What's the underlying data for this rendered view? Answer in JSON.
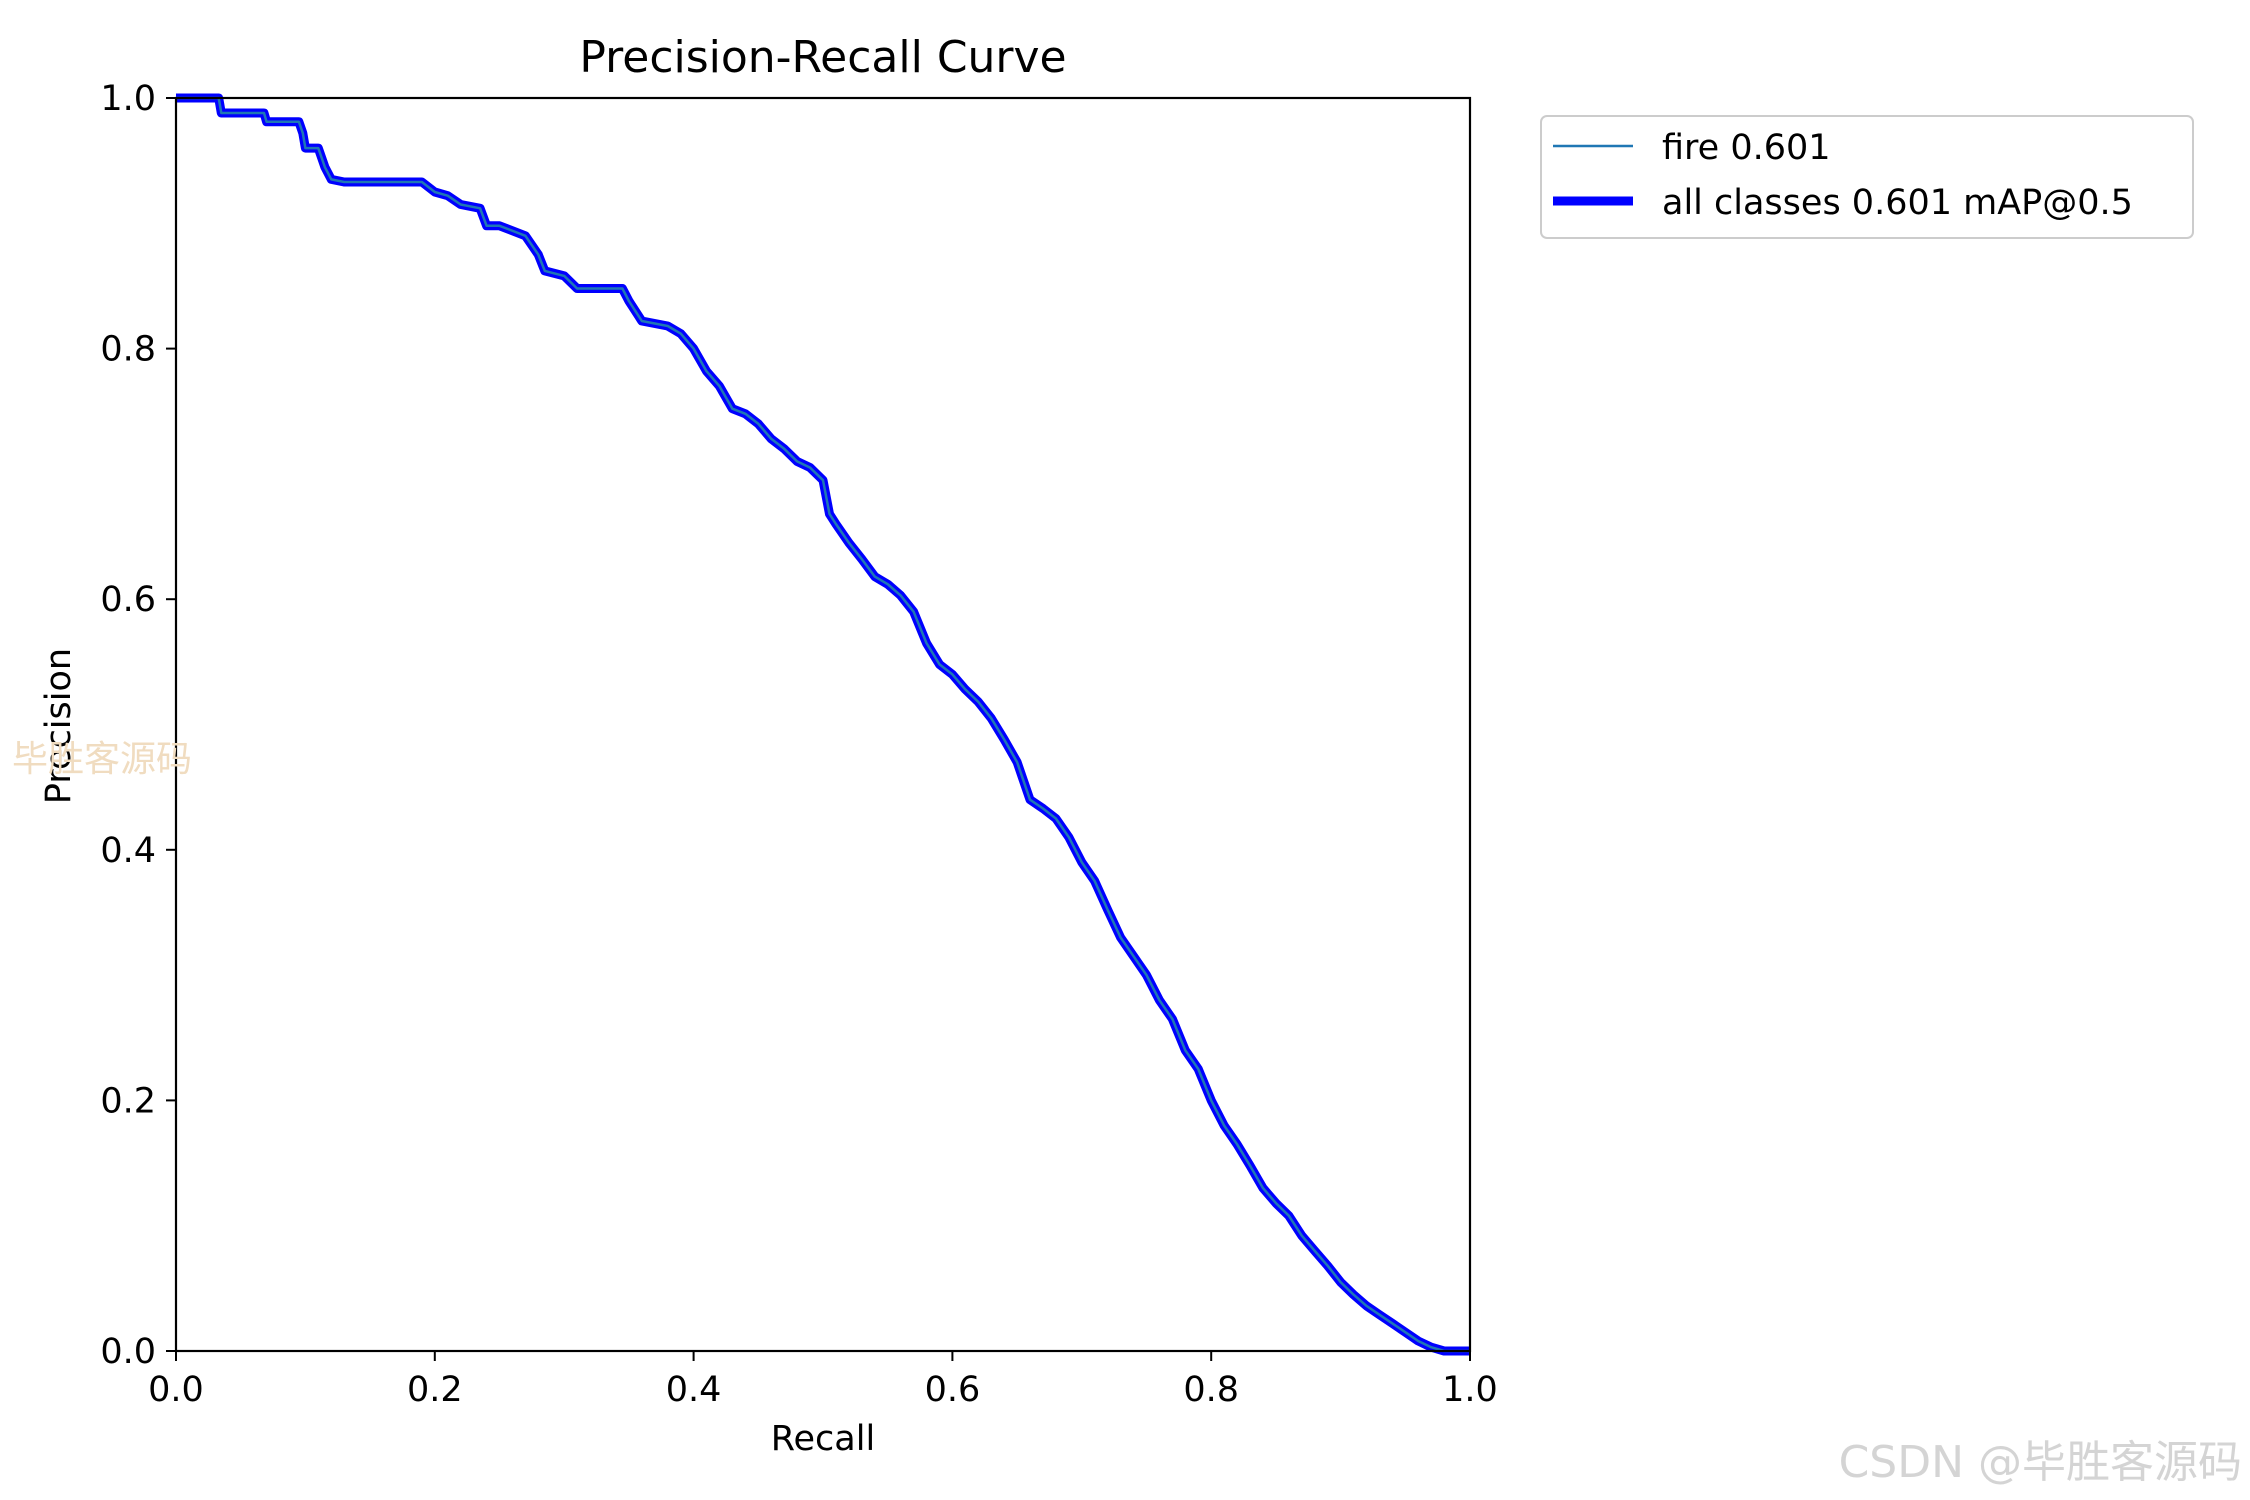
{
  "chart_data": {
    "type": "line",
    "title": "Precision-Recall Curve",
    "xlabel": "Recall",
    "ylabel": "Precision",
    "xlim": [
      0,
      1
    ],
    "ylim": [
      0,
      1
    ],
    "xticks": [
      "0.0",
      "0.2",
      "0.4",
      "0.6",
      "0.8",
      "1.0"
    ],
    "yticks": [
      "0.0",
      "0.2",
      "0.4",
      "0.6",
      "0.8",
      "1.0"
    ],
    "grid": false,
    "legend_position": "outside-top-right",
    "series": [
      {
        "name": "fire 0.601",
        "color": "#1f77b4",
        "x": [
          0.0,
          0.033,
          0.035,
          0.068,
          0.07,
          0.095,
          0.098,
          0.1,
          0.11,
          0.115,
          0.12,
          0.13,
          0.19,
          0.2,
          0.21,
          0.22,
          0.235,
          0.24,
          0.25,
          0.27,
          0.28,
          0.285,
          0.3,
          0.31,
          0.345,
          0.35,
          0.36,
          0.38,
          0.39,
          0.4,
          0.41,
          0.42,
          0.43,
          0.44,
          0.45,
          0.46,
          0.47,
          0.48,
          0.49,
          0.5,
          0.505,
          0.51,
          0.52,
          0.53,
          0.54,
          0.55,
          0.56,
          0.57,
          0.58,
          0.59,
          0.6,
          0.61,
          0.62,
          0.63,
          0.64,
          0.65,
          0.66,
          0.67,
          0.68,
          0.69,
          0.7,
          0.71,
          0.72,
          0.73,
          0.74,
          0.75,
          0.76,
          0.77,
          0.78,
          0.79,
          0.8,
          0.81,
          0.82,
          0.83,
          0.84,
          0.85,
          0.86,
          0.87,
          0.88,
          0.89,
          0.9,
          0.91,
          0.92,
          0.93,
          0.94,
          0.95,
          0.96,
          0.97,
          0.98,
          0.99,
          1.0
        ],
        "y": [
          1.0,
          1.0,
          0.988,
          0.988,
          0.981,
          0.981,
          0.972,
          0.96,
          0.96,
          0.945,
          0.935,
          0.933,
          0.933,
          0.925,
          0.922,
          0.915,
          0.912,
          0.898,
          0.898,
          0.89,
          0.875,
          0.862,
          0.858,
          0.848,
          0.848,
          0.838,
          0.822,
          0.818,
          0.812,
          0.8,
          0.782,
          0.77,
          0.752,
          0.748,
          0.74,
          0.728,
          0.72,
          0.71,
          0.705,
          0.695,
          0.668,
          0.66,
          0.645,
          0.632,
          0.618,
          0.612,
          0.603,
          0.59,
          0.565,
          0.548,
          0.54,
          0.528,
          0.518,
          0.505,
          0.488,
          0.47,
          0.44,
          0.433,
          0.425,
          0.41,
          0.39,
          0.375,
          0.352,
          0.33,
          0.315,
          0.3,
          0.28,
          0.265,
          0.24,
          0.225,
          0.2,
          0.18,
          0.165,
          0.148,
          0.13,
          0.118,
          0.108,
          0.092,
          0.08,
          0.068,
          0.055,
          0.045,
          0.036,
          0.029,
          0.022,
          0.015,
          0.008,
          0.003,
          0.0,
          0.0,
          0.0
        ]
      },
      {
        "name": "all classes 0.601 mAP@0.5",
        "color": "#0000ff",
        "x": [
          0.0,
          0.033,
          0.035,
          0.068,
          0.07,
          0.095,
          0.098,
          0.1,
          0.11,
          0.115,
          0.12,
          0.13,
          0.19,
          0.2,
          0.21,
          0.22,
          0.235,
          0.24,
          0.25,
          0.27,
          0.28,
          0.285,
          0.3,
          0.31,
          0.345,
          0.35,
          0.36,
          0.38,
          0.39,
          0.4,
          0.41,
          0.42,
          0.43,
          0.44,
          0.45,
          0.46,
          0.47,
          0.48,
          0.49,
          0.5,
          0.505,
          0.51,
          0.52,
          0.53,
          0.54,
          0.55,
          0.56,
          0.57,
          0.58,
          0.59,
          0.6,
          0.61,
          0.62,
          0.63,
          0.64,
          0.65,
          0.66,
          0.67,
          0.68,
          0.69,
          0.7,
          0.71,
          0.72,
          0.73,
          0.74,
          0.75,
          0.76,
          0.77,
          0.78,
          0.79,
          0.8,
          0.81,
          0.82,
          0.83,
          0.84,
          0.85,
          0.86,
          0.87,
          0.88,
          0.89,
          0.9,
          0.91,
          0.92,
          0.93,
          0.94,
          0.95,
          0.96,
          0.97,
          0.98,
          0.99,
          1.0
        ],
        "y": [
          1.0,
          1.0,
          0.988,
          0.988,
          0.981,
          0.981,
          0.972,
          0.96,
          0.96,
          0.945,
          0.935,
          0.933,
          0.933,
          0.925,
          0.922,
          0.915,
          0.912,
          0.898,
          0.898,
          0.89,
          0.875,
          0.862,
          0.858,
          0.848,
          0.848,
          0.838,
          0.822,
          0.818,
          0.812,
          0.8,
          0.782,
          0.77,
          0.752,
          0.748,
          0.74,
          0.728,
          0.72,
          0.71,
          0.705,
          0.695,
          0.668,
          0.66,
          0.645,
          0.632,
          0.618,
          0.612,
          0.603,
          0.59,
          0.565,
          0.548,
          0.54,
          0.528,
          0.518,
          0.505,
          0.488,
          0.47,
          0.44,
          0.433,
          0.425,
          0.41,
          0.39,
          0.375,
          0.352,
          0.33,
          0.315,
          0.3,
          0.28,
          0.265,
          0.24,
          0.225,
          0.2,
          0.18,
          0.165,
          0.148,
          0.13,
          0.118,
          0.108,
          0.092,
          0.08,
          0.068,
          0.055,
          0.045,
          0.036,
          0.029,
          0.022,
          0.015,
          0.008,
          0.003,
          0.0,
          0.0,
          0.0
        ]
      }
    ]
  },
  "watermarks": {
    "side": "毕胜客源码",
    "corner": "CSDN @毕胜客源码"
  }
}
